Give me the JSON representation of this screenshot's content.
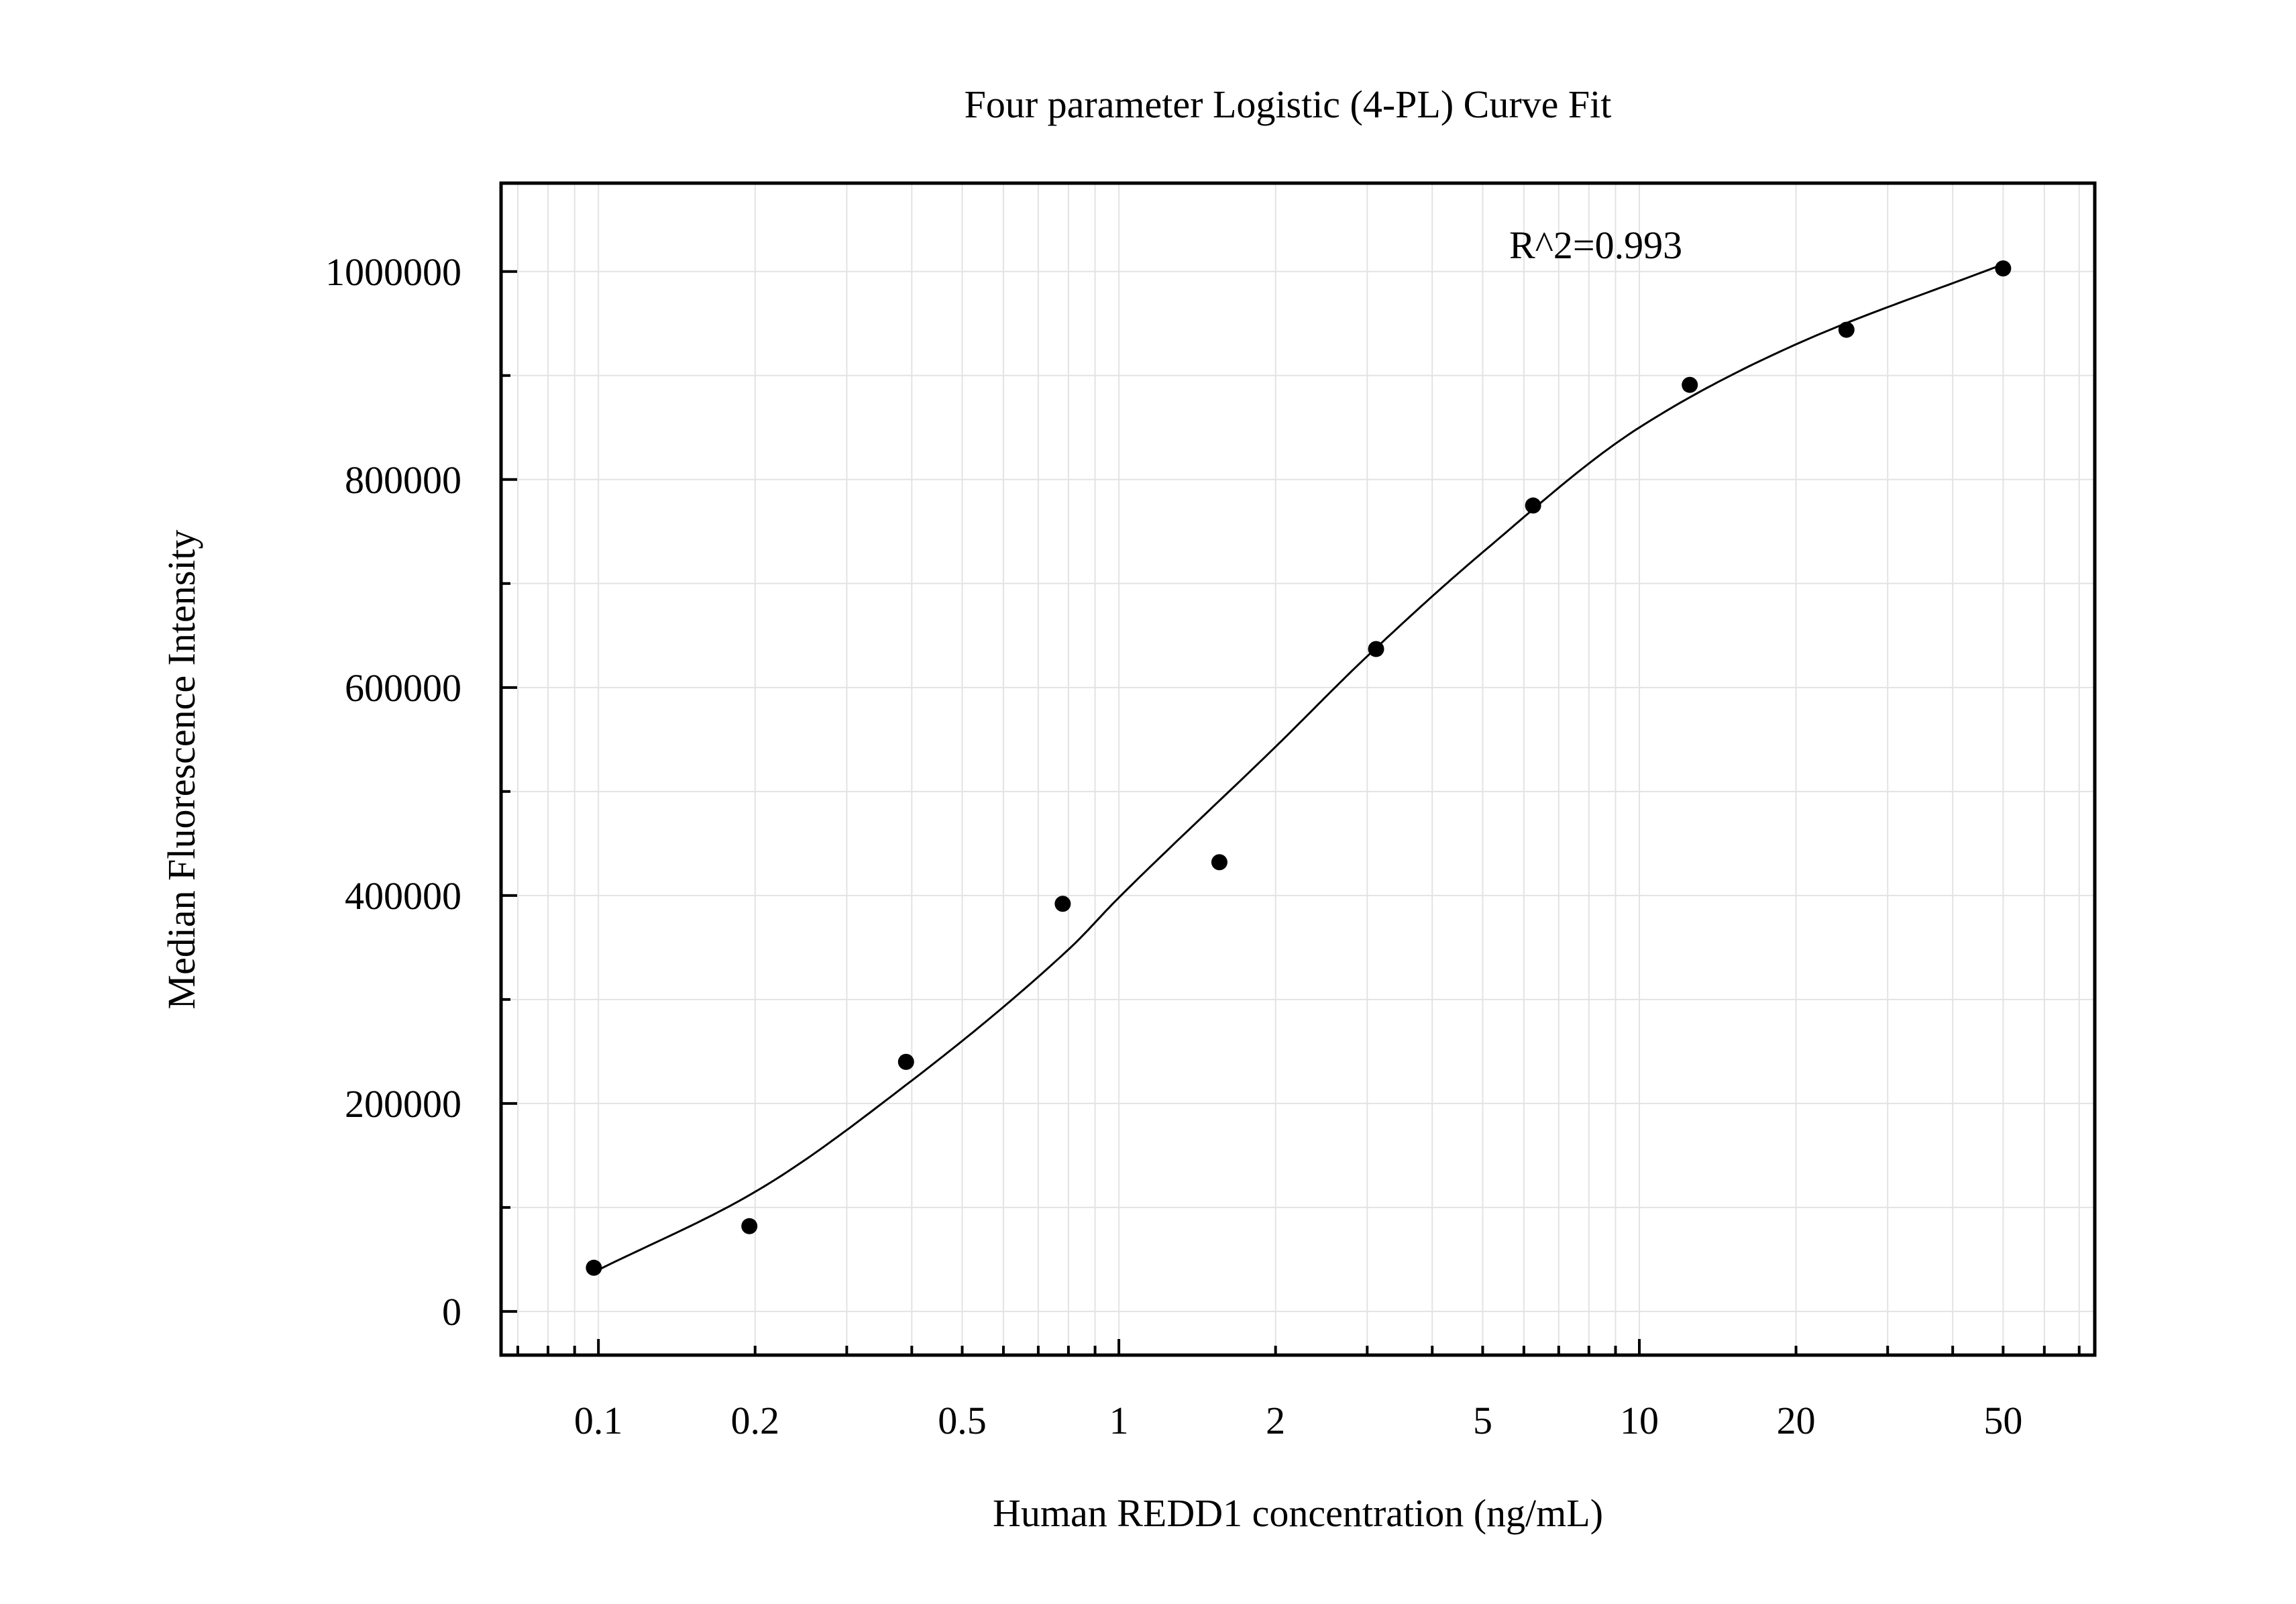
{
  "chart_data": {
    "type": "scatter",
    "title": "Four parameter Logistic (4-PL) Curve Fit",
    "xlabel": "Human REDD1 concentration (ng/mL)",
    "ylabel": "Median Fluorescence Intensity",
    "x_scale": "log",
    "xlim": [
      0.065,
      75
    ],
    "ylim": [
      -42000,
      1085000
    ],
    "x_ticks": [
      {
        "value": 0.1,
        "label": "0.1"
      },
      {
        "value": 0.2,
        "label": "0.2"
      },
      {
        "value": 0.5,
        "label": "0.5"
      },
      {
        "value": 1,
        "label": "1"
      },
      {
        "value": 2,
        "label": "2"
      },
      {
        "value": 5,
        "label": "5"
      },
      {
        "value": 10,
        "label": "10"
      },
      {
        "value": 20,
        "label": "20"
      },
      {
        "value": 50,
        "label": "50"
      }
    ],
    "y_ticks": [
      {
        "value": 0,
        "label": "0"
      },
      {
        "value": 200000,
        "label": "200000"
      },
      {
        "value": 400000,
        "label": "400000"
      },
      {
        "value": 600000,
        "label": "600000"
      },
      {
        "value": 800000,
        "label": "800000"
      },
      {
        "value": 1000000,
        "label": "1000000"
      }
    ],
    "grid": true,
    "annotation": "R^2=0.993",
    "series": [
      {
        "type": "scatter",
        "color": "#000000",
        "x": [
          0.098,
          0.195,
          0.39,
          0.78,
          1.56,
          3.12,
          6.25,
          12.5,
          25,
          50
        ],
        "y": [
          42000,
          82000,
          240000,
          392000,
          432000,
          637000,
          775000,
          891000,
          944000,
          1003000
        ]
      },
      {
        "type": "line",
        "color": "#000000",
        "x": [
          0.1,
          0.2,
          0.4,
          0.8,
          1.0,
          2.0,
          3.0,
          5.0,
          10,
          20,
          50
        ],
        "y": [
          40000,
          115000,
          222000,
          348000,
          398000,
          543000,
          630000,
          730000,
          850000,
          930000,
          1007000
        ]
      }
    ]
  }
}
